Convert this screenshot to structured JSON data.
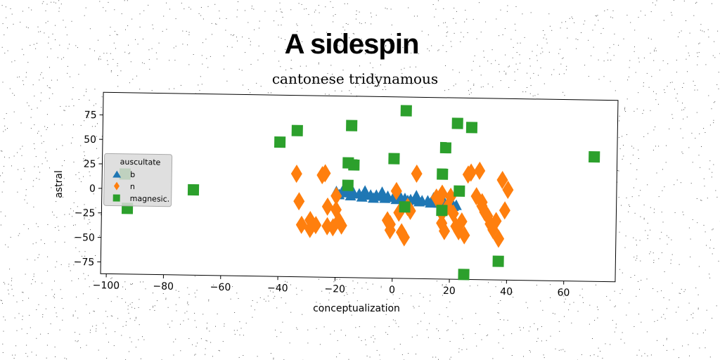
{
  "chart_data": {
    "type": "scatter",
    "title": "A sidespin",
    "subtitle": "cantonese tridynamous",
    "xlabel": "conceptualization",
    "ylabel": "astral",
    "xlim": [
      -102,
      78
    ],
    "ylim": [
      -87,
      98
    ],
    "xticks": [
      -100,
      -80,
      -60,
      -40,
      -20,
      0,
      20,
      40,
      60
    ],
    "yticks": [
      -75,
      -50,
      -25,
      0,
      25,
      50,
      75
    ],
    "xtick_labels": [
      "−100",
      "−80",
      "−60",
      "−40",
      "−20",
      "0",
      "20",
      "40",
      "60"
    ],
    "ytick_labels": [
      "−75",
      "−50",
      "−25",
      "0",
      "25",
      "50",
      "75"
    ],
    "grid": false,
    "legend": {
      "title": "auscultate",
      "placement": "center-left"
    },
    "series": [
      {
        "name": "b",
        "marker": "triangle",
        "color": "#1f77b4",
        "points": [
          [
            -20,
            0
          ],
          [
            -18,
            0
          ],
          [
            -16,
            -1
          ],
          [
            -14,
            -1
          ],
          [
            -12,
            -2
          ],
          [
            -10,
            -2
          ],
          [
            -8,
            -3
          ],
          [
            -6,
            -3
          ],
          [
            -4,
            -4
          ],
          [
            -2,
            -4
          ],
          [
            0,
            -5
          ],
          [
            2,
            -6
          ],
          [
            4,
            -6
          ],
          [
            6,
            -7
          ],
          [
            8,
            -7
          ],
          [
            10,
            -8
          ],
          [
            12,
            -8
          ],
          [
            14,
            -9
          ],
          [
            16,
            -10
          ],
          [
            18,
            -10
          ],
          [
            20,
            -11
          ],
          [
            22,
            -12
          ],
          [
            -19,
            -3
          ],
          [
            -15,
            -4
          ],
          [
            -11,
            -5
          ],
          [
            -7,
            -6
          ],
          [
            -3,
            -6
          ],
          [
            1,
            -7
          ],
          [
            5,
            -8
          ],
          [
            9,
            -9
          ],
          [
            13,
            -10
          ],
          [
            17,
            -11
          ],
          [
            21,
            -13
          ],
          [
            -16,
            2
          ],
          [
            -10,
            1
          ],
          [
            -4,
            0
          ],
          [
            2,
            -2
          ],
          [
            8,
            -3
          ],
          [
            14,
            -5
          ],
          [
            20,
            -7
          ]
        ]
      },
      {
        "name": "n",
        "marker": "diamond",
        "color": "#ff7f0e",
        "points": [
          [
            -33,
            -10
          ],
          [
            -32,
            -34
          ],
          [
            -29,
            -38
          ],
          [
            -29,
            -29
          ],
          [
            -27,
            -34
          ],
          [
            -23,
            -35
          ],
          [
            -23,
            -15
          ],
          [
            -21,
            -36
          ],
          [
            -20,
            -4
          ],
          [
            -20,
            -18
          ],
          [
            -19,
            -29
          ],
          [
            -18,
            -34
          ],
          [
            -34,
            18
          ],
          [
            -25,
            17
          ],
          [
            -24,
            19
          ],
          [
            -2,
            -28
          ],
          [
            -1,
            -32
          ],
          [
            -1,
            -38
          ],
          [
            1,
            2
          ],
          [
            2,
            -20
          ],
          [
            3,
            -40
          ],
          [
            4,
            -45
          ],
          [
            5,
            -14
          ],
          [
            6,
            -18
          ],
          [
            8,
            20
          ],
          [
            15,
            -4
          ],
          [
            16,
            -7
          ],
          [
            17,
            0
          ],
          [
            17,
            -20
          ],
          [
            17,
            -30
          ],
          [
            18,
            -38
          ],
          [
            19,
            -13
          ],
          [
            20,
            -3
          ],
          [
            21,
            -20
          ],
          [
            22,
            -33
          ],
          [
            23,
            -38
          ],
          [
            24,
            -28
          ],
          [
            25,
            -42
          ],
          [
            26,
            20
          ],
          [
            27,
            22
          ],
          [
            29,
            -2
          ],
          [
            30,
            24
          ],
          [
            31,
            -8
          ],
          [
            31,
            -12
          ],
          [
            32,
            -18
          ],
          [
            33,
            -22
          ],
          [
            34,
            -30
          ],
          [
            35,
            -36
          ],
          [
            36,
            -27
          ],
          [
            37,
            -45
          ],
          [
            38,
            15
          ],
          [
            39,
            -16
          ],
          [
            40,
            5
          ]
        ]
      },
      {
        "name": "magnesic.",
        "marker": "square",
        "color": "#2ca02c",
        "points": [
          [
            -94,
            15
          ],
          [
            -93,
            -20
          ],
          [
            -70,
            0
          ],
          [
            -40,
            50
          ],
          [
            -34,
            62
          ],
          [
            -15,
            68
          ],
          [
            -14,
            28
          ],
          [
            -16,
            30
          ],
          [
            -16,
            7
          ],
          [
            0,
            35
          ],
          [
            4,
            -14
          ],
          [
            4,
            84
          ],
          [
            17,
            -17
          ],
          [
            17,
            20
          ],
          [
            18,
            47
          ],
          [
            22,
            72
          ],
          [
            23,
            3
          ],
          [
            25,
            -82
          ],
          [
            27,
            68
          ],
          [
            37,
            -68
          ],
          [
            70,
            40
          ]
        ]
      }
    ]
  }
}
